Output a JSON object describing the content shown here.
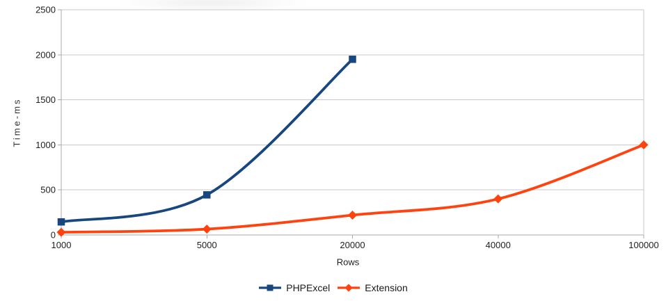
{
  "chart_data": {
    "type": "line",
    "smooth": true,
    "title": "",
    "categories": [
      "1000",
      "5000",
      "20000",
      "40000",
      "100000"
    ],
    "series": [
      {
        "name": "PHPExcel",
        "color": "#17477e",
        "marker": "square",
        "values": [
          145,
          445,
          1950
        ]
      },
      {
        "name": "Extension",
        "color": "#ff420e",
        "marker": "diamond",
        "values": [
          30,
          65,
          220,
          400,
          1000
        ]
      }
    ],
    "xlabel": "Rows",
    "ylabel": "Time-ms",
    "ylim": [
      0,
      2500
    ],
    "ytick_interval": 500,
    "yticks": [
      "0",
      "500",
      "1000",
      "1500",
      "2000",
      "2500"
    ],
    "grid": "horizontal-only",
    "legend_position": "bottom",
    "axis_color": "#a8a8a8",
    "grid_color": "#c9c9c9",
    "text_color": "#1e1e1e"
  }
}
